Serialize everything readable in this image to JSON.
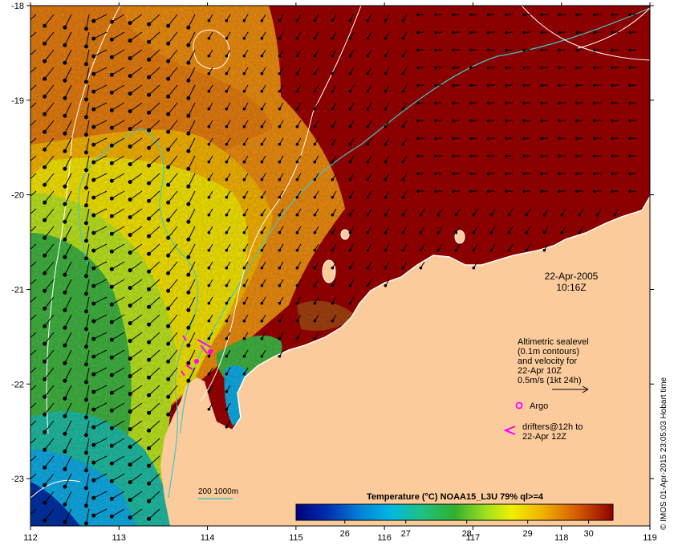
{
  "map": {
    "date": "22-Apr-2005",
    "time": "10:16Z",
    "lon_ticks": [
      "112",
      "113",
      "114",
      "115",
      "116",
      "117",
      "118",
      "119"
    ],
    "lat_ticks": [
      "-18",
      "-19",
      "-20",
      "-21",
      "-22",
      "-23"
    ],
    "lon_range": [
      112,
      119
    ],
    "lat_range": [
      -23.5,
      -18
    ],
    "land_color": "#fccb9b",
    "contour_color": "#40c8c8",
    "sealevel_contour_color": "#ffffff"
  },
  "legend": {
    "altimetric_lines": [
      "Altimetric sealevel",
      "(0.1m contours)",
      "and velocity for",
      "22-Apr 10Z",
      "0.5m/s (1kt 24h)"
    ],
    "argo_label": "Argo",
    "drifters_lines": [
      "drifters@12h to",
      "22-Apr 12Z"
    ],
    "marker_color": "#ff00ff",
    "contour_key": "200  1000m"
  },
  "colorbar": {
    "title": "Temperature (°C) NOAA15_L3U 79% ql>=4",
    "ticks": [
      "26",
      "27",
      "28",
      "29",
      "30"
    ],
    "tick_values": [
      26,
      27,
      28,
      29,
      30
    ],
    "range": [
      25.2,
      30.4
    ],
    "colors": [
      "#00007f",
      "#0050c0",
      "#00a0e0",
      "#20c090",
      "#30b030",
      "#b0e020",
      "#f0f000",
      "#f0a000",
      "#d05000",
      "#900000"
    ]
  },
  "credit": "© IMOS 01-Apr-2015 23:05:03 Hobart time"
}
